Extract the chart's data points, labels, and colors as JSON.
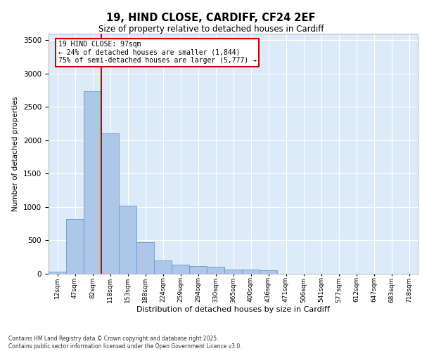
{
  "title_line1": "19, HIND CLOSE, CARDIFF, CF24 2EF",
  "title_line2": "Size of property relative to detached houses in Cardiff",
  "xlabel": "Distribution of detached houses by size in Cardiff",
  "ylabel": "Number of detached properties",
  "categories": [
    "12sqm",
    "47sqm",
    "82sqm",
    "118sqm",
    "153sqm",
    "188sqm",
    "224sqm",
    "259sqm",
    "294sqm",
    "330sqm",
    "365sqm",
    "400sqm",
    "436sqm",
    "471sqm",
    "506sqm",
    "541sqm",
    "577sqm",
    "612sqm",
    "647sqm",
    "683sqm",
    "718sqm"
  ],
  "values": [
    30,
    820,
    2730,
    2100,
    1020,
    470,
    200,
    140,
    120,
    100,
    60,
    60,
    50,
    0,
    0,
    0,
    0,
    0,
    0,
    0,
    0
  ],
  "bar_color": "#aec6e8",
  "bar_edge_color": "#5a9fd4",
  "vline_color": "#cc0000",
  "vline_x": 2.5,
  "annotation_line1": "19 HIND CLOSE: 97sqm",
  "annotation_line2": "← 24% of detached houses are smaller (1,844)",
  "annotation_line3": "75% of semi-detached houses are larger (5,777) →",
  "annotation_box_edgecolor": "#cc0000",
  "ylim": [
    0,
    3600
  ],
  "yticks": [
    0,
    500,
    1000,
    1500,
    2000,
    2500,
    3000,
    3500
  ],
  "bg_color": "#ddeaf8",
  "grid_color": "#ffffff",
  "footer_line1": "Contains HM Land Registry data © Crown copyright and database right 2025.",
  "footer_line2": "Contains public sector information licensed under the Open Government Licence v3.0."
}
